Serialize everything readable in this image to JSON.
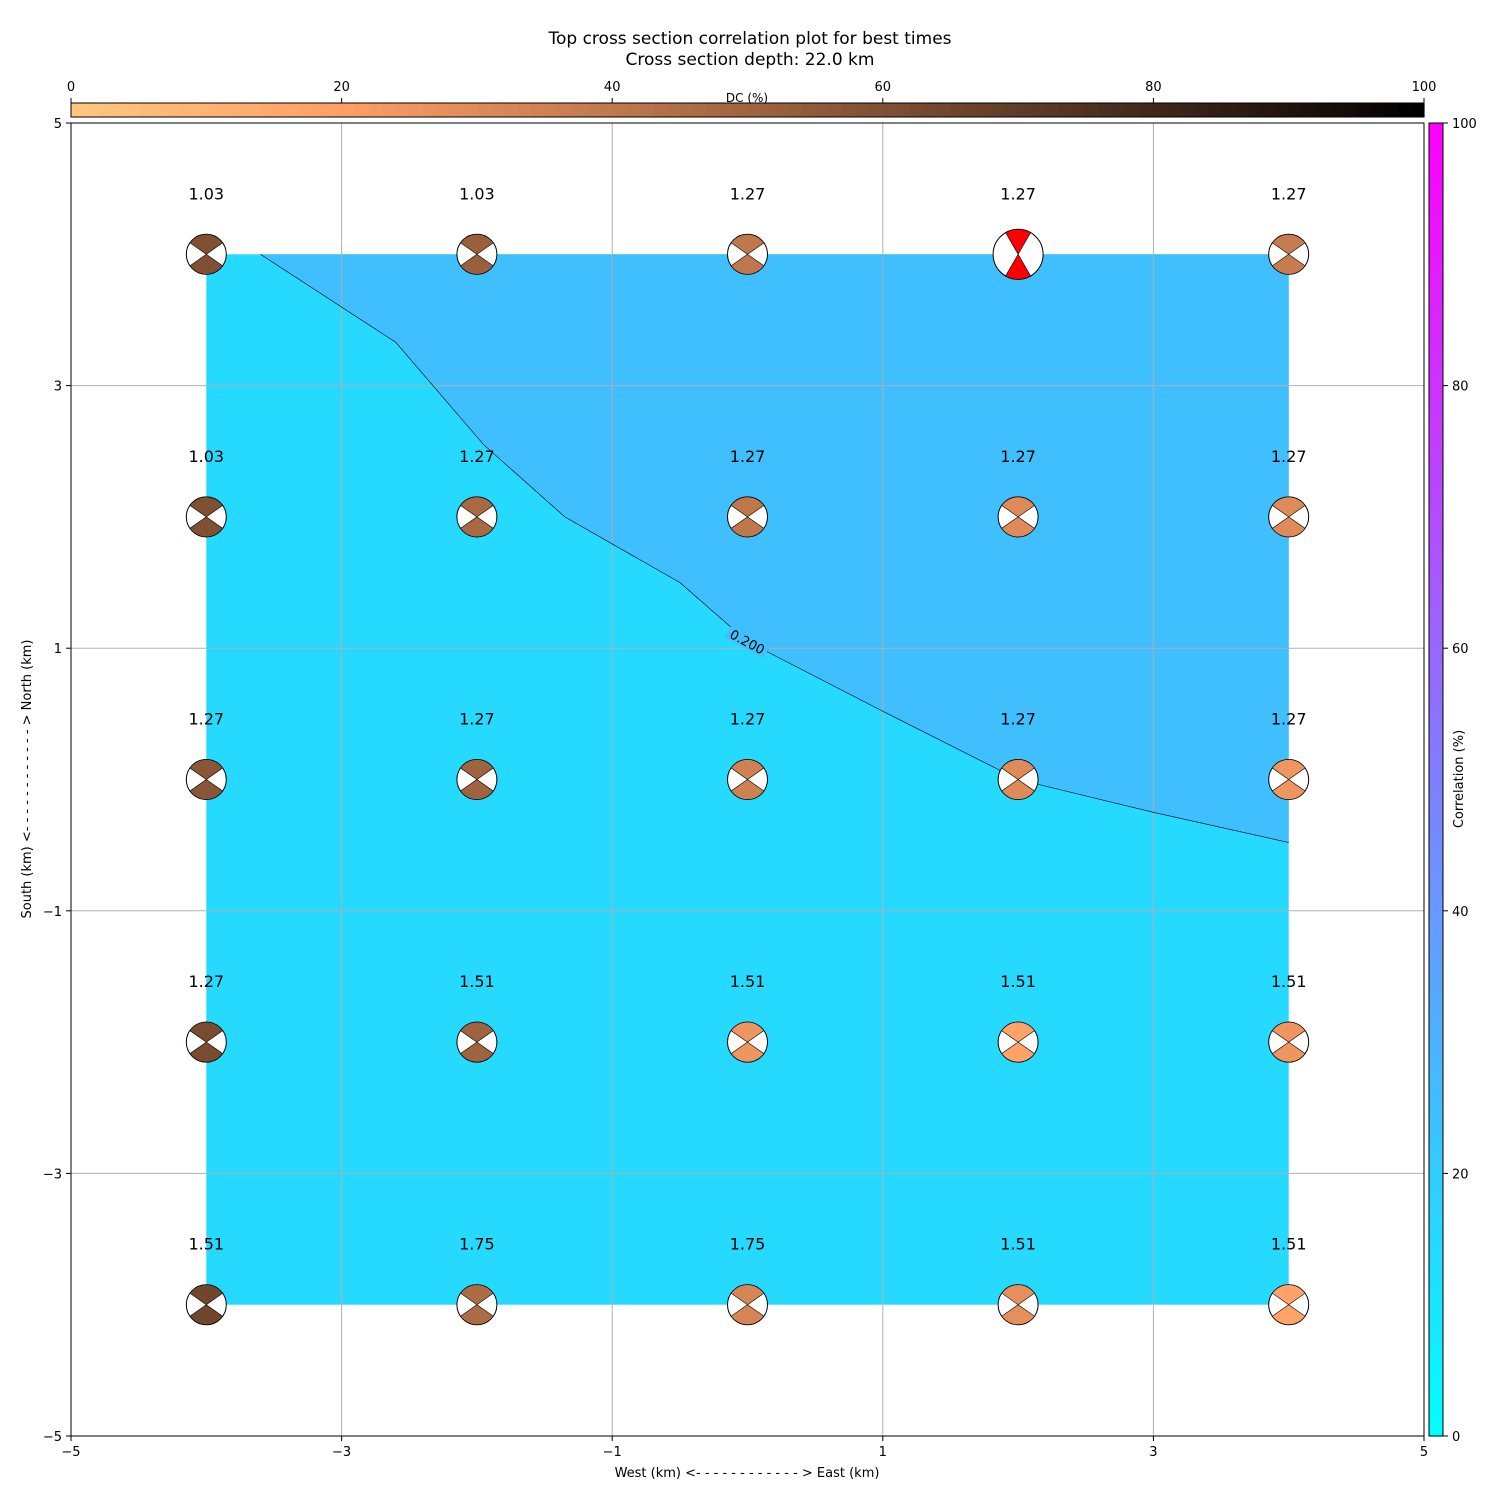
{
  "chart_data": {
    "type": "heatmap",
    "title": "Top cross section correlation plot for best times",
    "subtitle": "Cross section depth: 22.0 km",
    "xlabel": "West (km) <- - - - - - - - - - - - > East (km)",
    "ylabel": "South (km) <- - - - - - - - - - - - > North (km)",
    "xlim": [
      -5,
      5
    ],
    "ylim": [
      -5,
      5
    ],
    "x_ticks": [
      -5,
      -3,
      -1,
      1,
      3,
      5
    ],
    "y_ticks": [
      -5,
      -3,
      -1,
      1,
      3,
      5
    ],
    "x_tick_labels": [
      "−5",
      "−3",
      "−1",
      "1",
      "3",
      "5"
    ],
    "y_tick_labels": [
      "−5",
      "−3",
      "−1",
      "1",
      "3",
      "5"
    ],
    "grid": true,
    "top_colorbar": {
      "label": "DC (%)",
      "range": [
        0,
        100
      ],
      "ticks": [
        0,
        20,
        40,
        60,
        80,
        100
      ],
      "tick_labels": [
        "0",
        "20",
        "40",
        "60",
        "80",
        "100"
      ],
      "colormap": "copper_r"
    },
    "right_colorbar": {
      "label": "Correlation (%)",
      "range": [
        0,
        100
      ],
      "ticks": [
        0,
        20,
        40,
        60,
        80,
        100
      ],
      "tick_labels": [
        "0",
        "20",
        "40",
        "60",
        "80",
        "100"
      ],
      "colormap": "cool"
    },
    "contour": {
      "level_label": "0.200",
      "line": [
        [
          -3.6,
          4.0
        ],
        [
          -2.6,
          3.33
        ],
        [
          -1.95,
          2.55
        ],
        [
          -1.35,
          2.0
        ],
        [
          -0.5,
          1.5
        ],
        [
          0.0,
          1.05
        ],
        [
          1.0,
          0.52
        ],
        [
          2.0,
          0.0
        ],
        [
          3.0,
          -0.25
        ],
        [
          4.0,
          -0.48
        ]
      ],
      "fill_below": "#26d9ff",
      "fill_above": "#40bfff"
    },
    "beachballs": {
      "x": [
        -4,
        -2,
        0,
        2,
        4
      ],
      "y": [
        4,
        2,
        0,
        -2,
        -4
      ],
      "labels": [
        [
          "1.03",
          "1.03",
          "1.27",
          "1.27",
          "1.27"
        ],
        [
          "1.03",
          "1.27",
          "1.27",
          "1.27",
          "1.27"
        ],
        [
          "1.27",
          "1.27",
          "1.27",
          "1.27",
          "1.27"
        ],
        [
          "1.27",
          "1.51",
          "1.51",
          "1.51",
          "1.51"
        ],
        [
          "1.51",
          "1.75",
          "1.75",
          "1.51",
          "1.51"
        ]
      ],
      "dc_percent": [
        [
          60,
          52,
          40,
          0,
          38
        ],
        [
          60,
          47,
          40,
          30,
          30
        ],
        [
          57,
          50,
          35,
          30,
          25
        ],
        [
          62,
          50,
          25,
          18,
          25
        ],
        [
          65,
          46,
          33,
          28,
          18
        ]
      ],
      "best_solution": {
        "row": 0,
        "col": 3,
        "color": "#ff0000"
      }
    }
  }
}
